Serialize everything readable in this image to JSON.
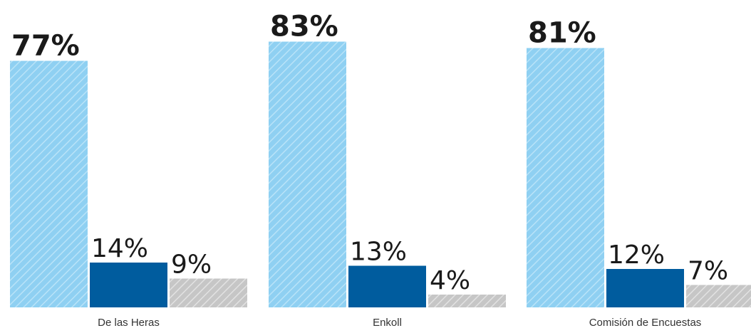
{
  "chart_data": {
    "type": "bar",
    "categories": [
      "De las Heras",
      "Enkoll",
      "Comisión de Encuestas"
    ],
    "series": [
      {
        "values": [
          77,
          83,
          81
        ],
        "color": "#8fd0f2",
        "pattern": "hatched"
      },
      {
        "values": [
          14,
          13,
          12
        ],
        "color": "#005c9e",
        "pattern": "solid"
      },
      {
        "values": [
          9,
          4,
          7
        ],
        "color": "#c6c6c6",
        "pattern": "hatched"
      }
    ],
    "value_labels": [
      [
        "77%",
        "14%",
        "9%"
      ],
      [
        "83%",
        "13%",
        "4%"
      ],
      [
        "81%",
        "12%",
        "7%"
      ]
    ],
    "ylim": [
      0,
      100
    ],
    "grid": false,
    "legend": "none"
  }
}
